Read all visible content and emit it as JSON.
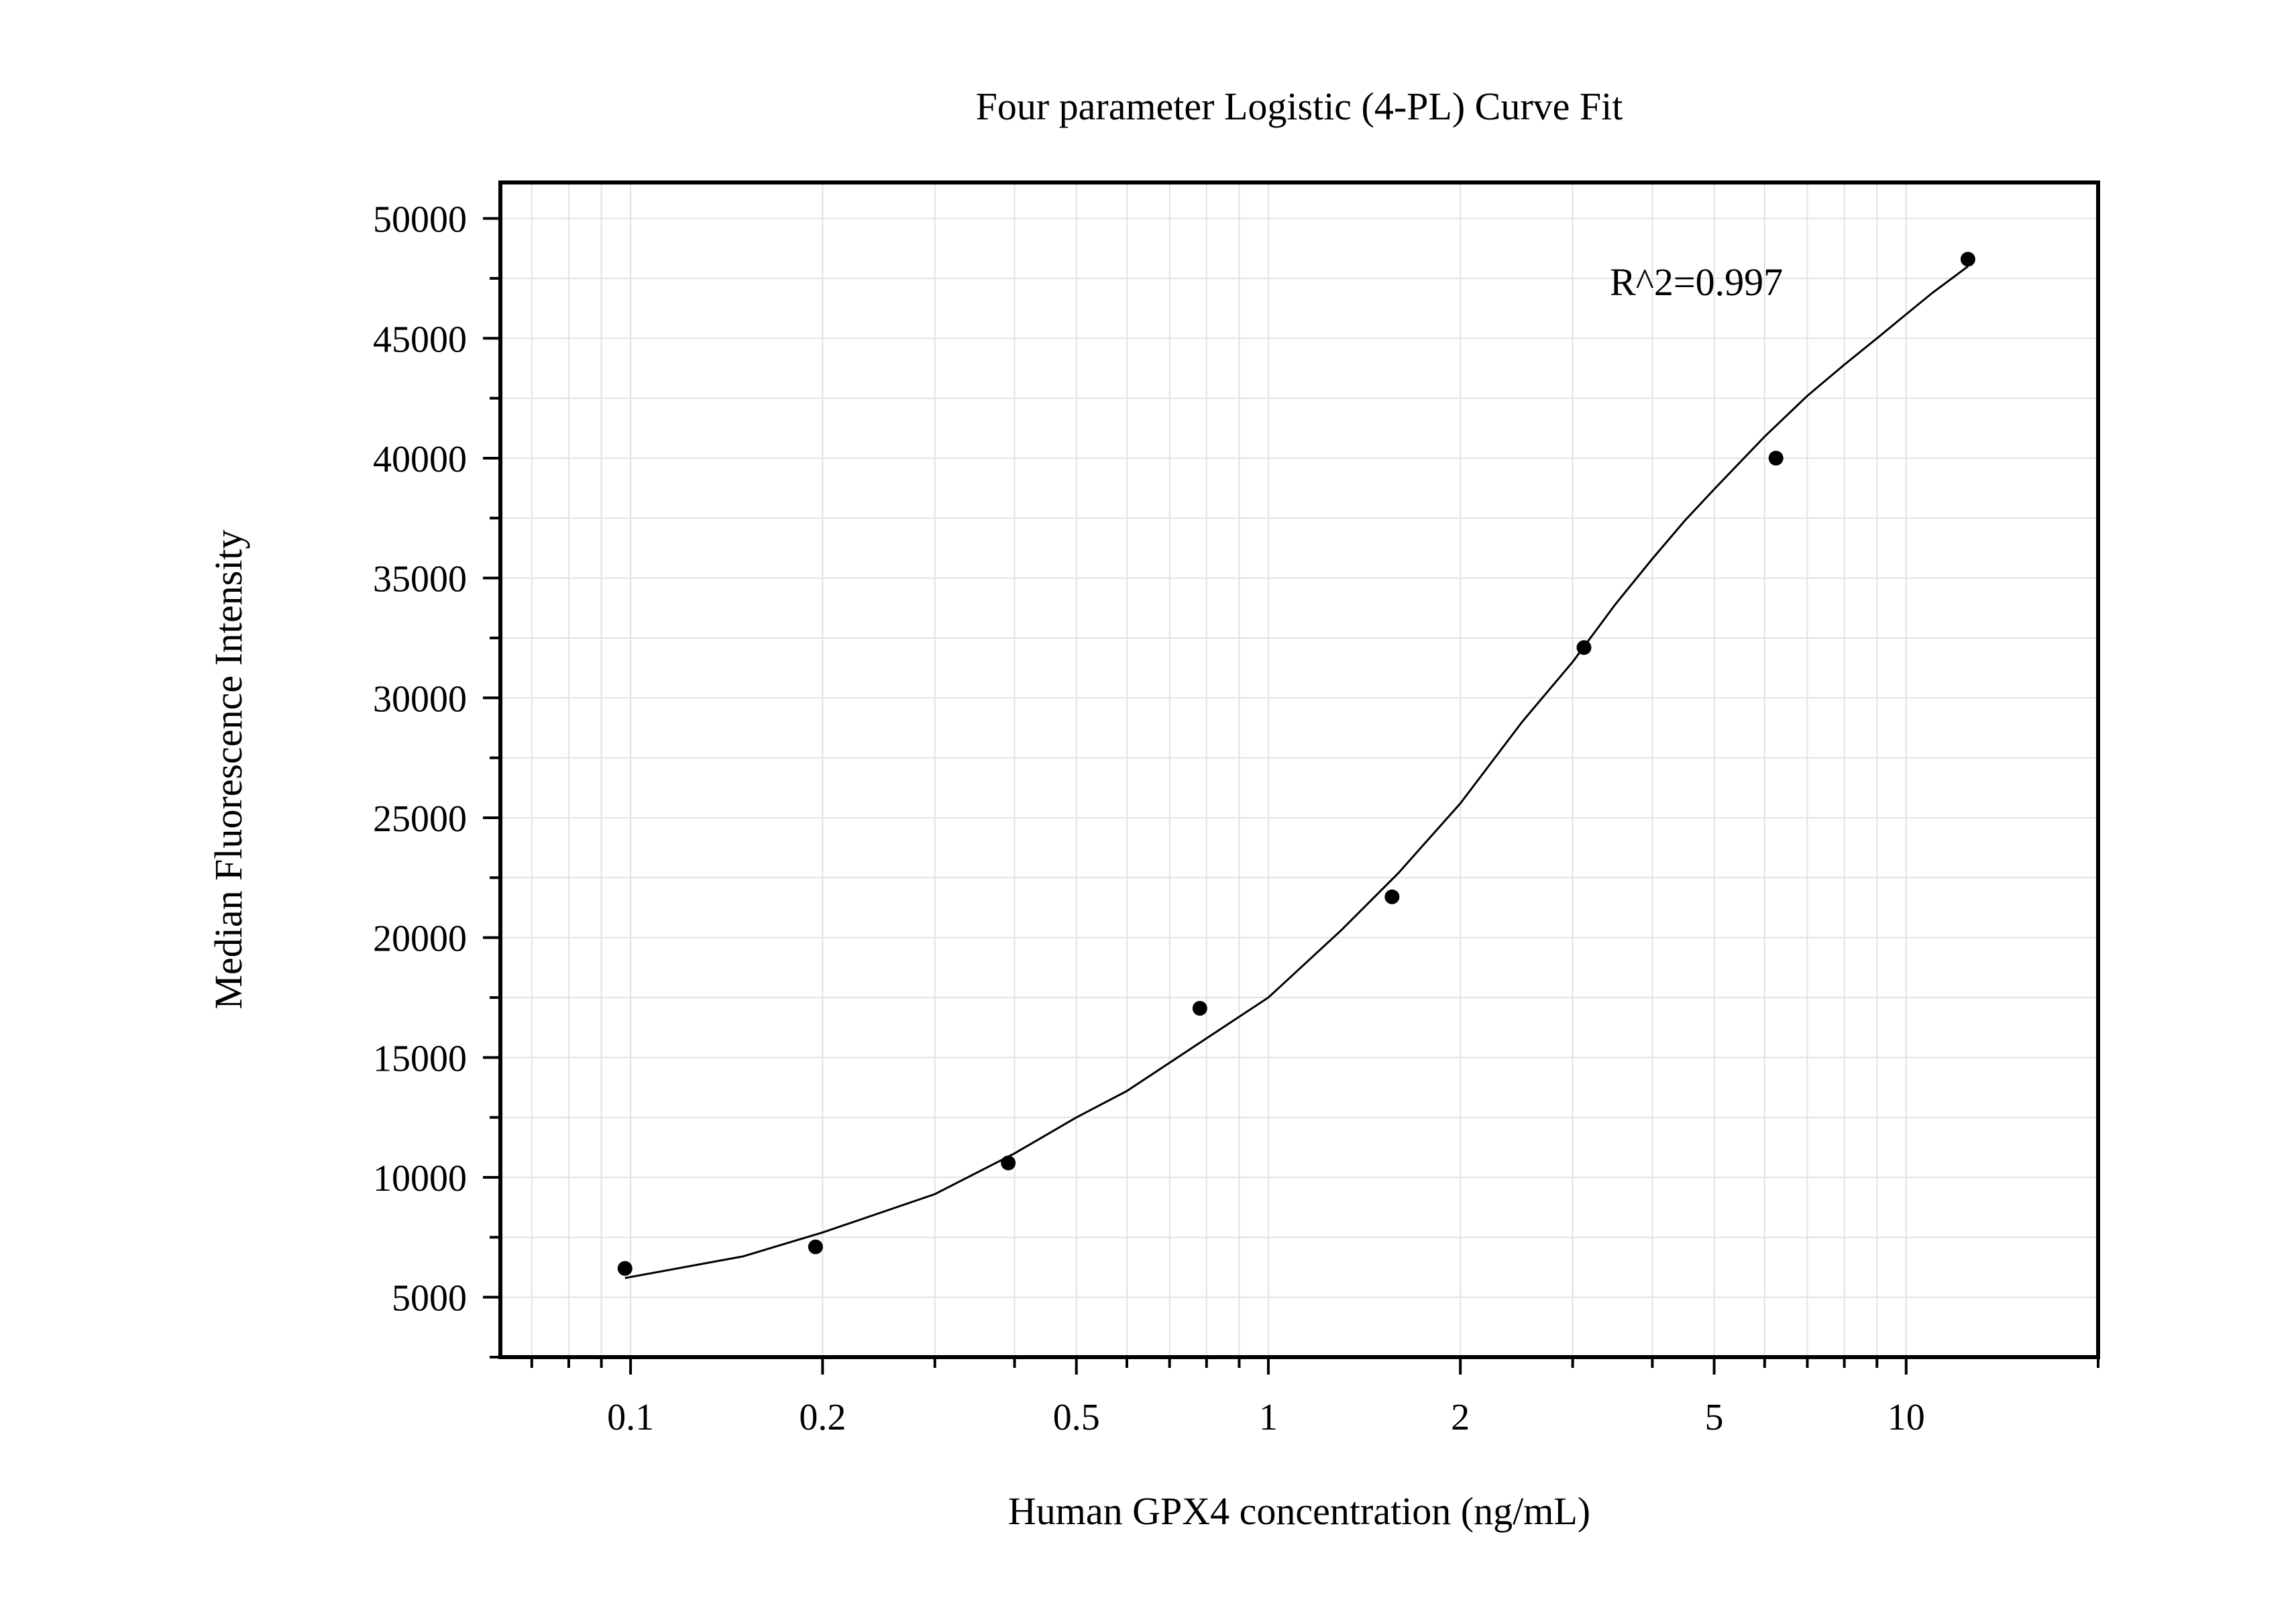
{
  "chart_data": {
    "type": "scatter",
    "title": "Four parameter Logistic (4-PL) Curve Fit",
    "xlabel": "Human GPX4 concentration (ng/mL)",
    "ylabel": "Median Fluorescence Intensity",
    "x_scale": "log",
    "xlim": [
      0.0625,
      20
    ],
    "ylim": [
      2500,
      51500
    ],
    "x_ticks": [
      0.1,
      0.2,
      0.5,
      1,
      2,
      5,
      10
    ],
    "x_tick_labels": [
      "0.1",
      "0.2",
      "0.5",
      "1",
      "2",
      "5",
      "10"
    ],
    "y_ticks": [
      5000,
      10000,
      15000,
      20000,
      25000,
      30000,
      35000,
      40000,
      45000,
      50000
    ],
    "y_tick_labels": [
      "5000",
      "10000",
      "15000",
      "20000",
      "25000",
      "30000",
      "35000",
      "40000",
      "45000",
      "50000"
    ],
    "grid": true,
    "annotation": "R^2=0.997",
    "series": [
      {
        "x": [
          0.098,
          0.195,
          0.391,
          0.781,
          1.563,
          3.125,
          6.25,
          12.5
        ],
        "y": [
          6200,
          7100,
          10600,
          17050,
          21700,
          32100,
          40000,
          48300
        ]
      }
    ],
    "fit_curve": {
      "x": [
        0.098,
        0.15,
        0.2,
        0.3,
        0.4,
        0.5,
        0.6,
        0.8,
        1,
        1.3,
        1.6,
        2,
        2.5,
        3,
        3.5,
        4,
        4.5,
        5,
        6,
        7,
        8,
        9,
        10,
        11,
        12.5
      ],
      "y": [
        5800,
        6700,
        7700,
        9300,
        11000,
        12500,
        13600,
        15800,
        17500,
        20300,
        22700,
        25600,
        29000,
        31500,
        33900,
        35800,
        37400,
        38700,
        40900,
        42600,
        43900,
        45000,
        46000,
        46900,
        48000
      ]
    }
  }
}
